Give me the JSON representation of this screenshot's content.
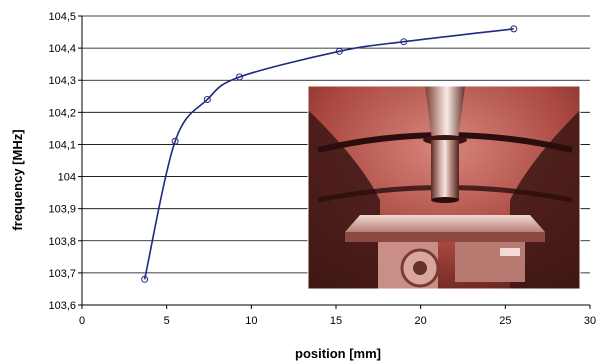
{
  "chart_data": {
    "type": "line",
    "xlabel": "position [mm]",
    "ylabel": "frequency [MHz]",
    "xlim": [
      0,
      30
    ],
    "ylim": [
      103.6,
      104.5
    ],
    "x_ticks": [
      "0",
      "5",
      "10",
      "15",
      "20",
      "25",
      "30"
    ],
    "y_ticks": [
      "103,6",
      "103,7",
      "103,8",
      "103,9",
      "104",
      "104,1",
      "104,2",
      "104,3",
      "104,4",
      "104,5"
    ],
    "grid": "horizontal",
    "legend": "none",
    "series": [
      {
        "x": [
          3.7,
          5.5,
          7.4,
          9.3,
          15.2,
          19,
          25.5
        ],
        "y": [
          103.68,
          104.11,
          104.24,
          104.31,
          104.39,
          104.42,
          104.46
        ],
        "color": "#1f2a80",
        "marker": "open-circle"
      }
    ]
  },
  "inset_image": {
    "description_icon": "photo-inset",
    "colors": [
      "#6e2a24",
      "#c9726a",
      "#e8c7b8"
    ]
  }
}
